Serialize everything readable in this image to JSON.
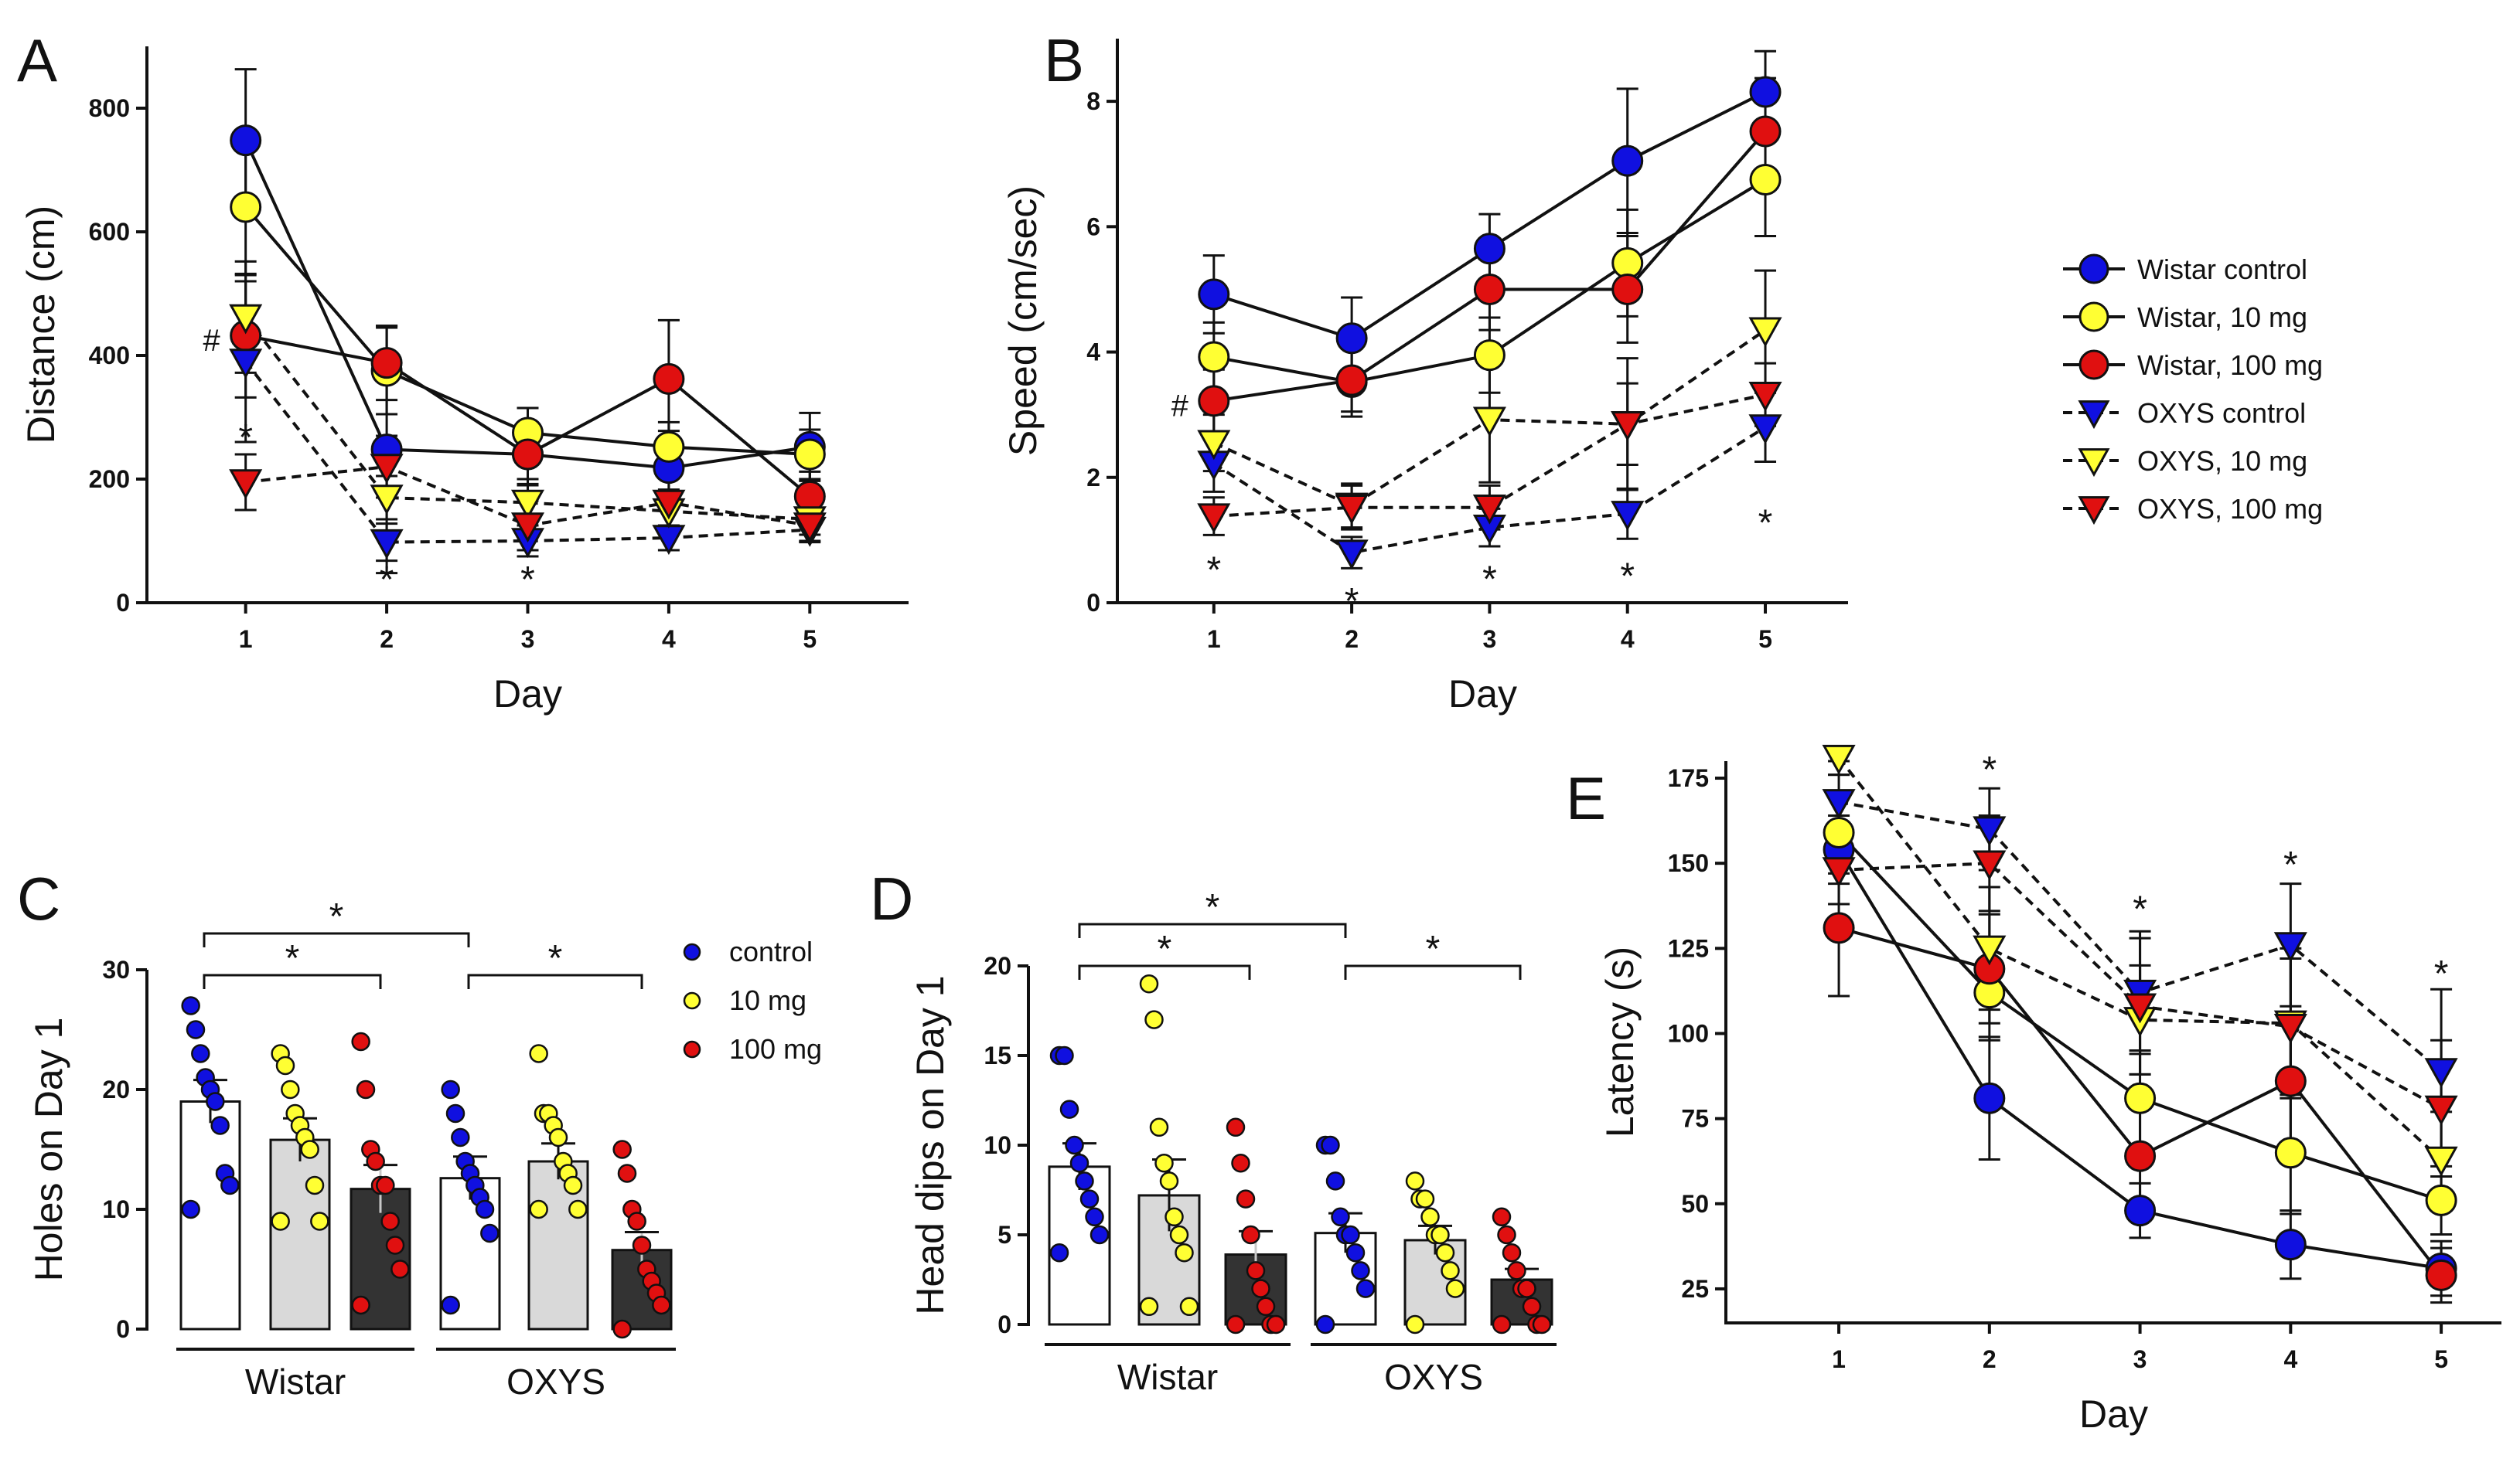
{
  "chart_data": [
    {
      "panel": "A",
      "type": "line",
      "xlabel": "Day",
      "ylabel": "Distance (cm)",
      "x": [
        1,
        2,
        3,
        4,
        5
      ],
      "ylim": [
        0,
        900
      ],
      "yticks": [
        0,
        200,
        400,
        600,
        800
      ],
      "series": [
        {
          "name": "Wistar control",
          "values": [
            748,
            248,
            240,
            218,
            252
          ],
          "errors": [
            115,
            200,
            50,
            60,
            55
          ]
        },
        {
          "name": "Wistar, 10 mg",
          "values": [
            640,
            375,
            275,
            252,
            240
          ],
          "errors": [
            110,
            70,
            40,
            40,
            40
          ]
        },
        {
          "name": "Wistar, 100 mg",
          "values": [
            432,
            388,
            240,
            362,
            172
          ],
          "errors": [
            100,
            60,
            40,
            95,
            40
          ]
        },
        {
          "name": "OXYS control",
          "values": [
            390,
            98,
            100,
            105,
            118
          ],
          "errors": [
            130,
            30,
            25,
            20,
            20
          ]
        },
        {
          "name": "OXYS, 10 mg",
          "values": [
            462,
            170,
            162,
            148,
            135
          ],
          "errors": [
            90,
            35,
            30,
            35,
            25
          ]
        },
        {
          "name": "OXYS, 100 mg",
          "values": [
            195,
            220,
            125,
            162,
            125
          ],
          "errors": [
            45,
            50,
            40,
            40,
            25
          ]
        }
      ],
      "annotations": [
        {
          "text": "#",
          "x": 1,
          "y": 430
        },
        {
          "text": "*",
          "x": 1,
          "y": 270
        },
        {
          "text": "*",
          "x": 2,
          "y": 40
        },
        {
          "text": "*",
          "x": 3,
          "y": 40
        }
      ]
    },
    {
      "panel": "B",
      "type": "line",
      "xlabel": "Day",
      "ylabel": "Speed (cm/sec)",
      "x": [
        1,
        2,
        3,
        4,
        5
      ],
      "ylim": [
        0,
        9
      ],
      "yticks": [
        0,
        2,
        4,
        6,
        8
      ],
      "series": [
        {
          "name": "Wistar control",
          "values": [
            4.92,
            4.22,
            5.65,
            7.05,
            8.15
          ],
          "errors": [
            0.62,
            0.65,
            0.55,
            1.15,
            0.65
          ]
        },
        {
          "name": "Wistar, 10 mg",
          "values": [
            3.92,
            3.52,
            3.95,
            5.42,
            6.75
          ],
          "errors": [
            0.55,
            0.55,
            0.6,
            0.85,
            0.9
          ]
        },
        {
          "name": "Wistar, 100 mg",
          "values": [
            3.22,
            3.55,
            5.0,
            5.0,
            7.52
          ],
          "errors": [
            0.5,
            0.5,
            0.65,
            0.85,
            0.85
          ]
        },
        {
          "name": "OXYS control",
          "values": [
            2.22,
            0.8,
            1.2,
            1.42,
            2.8
          ],
          "errors": [
            0.45,
            0.25,
            0.3,
            0.4,
            0.55
          ]
        },
        {
          "name": "OXYS, 10 mg",
          "values": [
            2.55,
            1.55,
            2.92,
            2.85,
            4.35
          ],
          "errors": [
            0.45,
            0.35,
            1.0,
            1.05,
            0.95
          ]
        },
        {
          "name": "OXYS, 100 mg",
          "values": [
            1.38,
            1.52,
            1.52,
            2.85,
            3.32
          ],
          "errors": [
            0.3,
            0.35,
            0.35,
            0.65,
            0.5
          ]
        }
      ],
      "annotations": [
        {
          "text": "#",
          "x": 1,
          "y": 3.2
        },
        {
          "text": "*",
          "x": 1,
          "y": 0.55
        },
        {
          "text": "*",
          "x": 2,
          "y": 0.05
        },
        {
          "text": "*",
          "x": 3,
          "y": 0.4
        },
        {
          "text": "*",
          "x": 4,
          "y": 0.45
        },
        {
          "text": "*",
          "x": 5,
          "y": 1.3
        }
      ]
    },
    {
      "panel": "C",
      "type": "bar",
      "ylabel": "Holes on Day 1",
      "ylim": [
        0,
        30
      ],
      "yticks": [
        0,
        10,
        20,
        30
      ],
      "groups": [
        "Wistar",
        "OXYS"
      ],
      "series_names": [
        "control",
        "10 mg",
        "100 mg"
      ],
      "bars": [
        {
          "group": "Wistar",
          "series": "control",
          "mean": 19,
          "sem": 1.8,
          "points": [
            27,
            25,
            23,
            21,
            20,
            19,
            17,
            13,
            12,
            10
          ]
        },
        {
          "group": "Wistar",
          "series": "10 mg",
          "mean": 15.8,
          "sem": 1.8,
          "points": [
            23,
            22,
            20,
            18,
            17,
            16,
            15,
            12,
            9,
            9
          ]
        },
        {
          "group": "Wistar",
          "series": "100 mg",
          "mean": 11.7,
          "sem": 2.0,
          "points": [
            24,
            20,
            15,
            14,
            12,
            12,
            9,
            7,
            5,
            2
          ]
        },
        {
          "group": "OXYS",
          "series": "control",
          "mean": 12.6,
          "sem": 1.8,
          "points": [
            20,
            18,
            16,
            14,
            13,
            12,
            11,
            10,
            8,
            2
          ]
        },
        {
          "group": "OXYS",
          "series": "10 mg",
          "mean": 14.0,
          "sem": 1.5,
          "points": [
            23,
            18,
            18,
            17,
            16,
            14,
            13,
            12,
            10,
            10
          ]
        },
        {
          "group": "OXYS",
          "series": "100 mg",
          "mean": 6.6,
          "sem": 1.5,
          "points": [
            15,
            13,
            10,
            9,
            7,
            5,
            4,
            3,
            2,
            0
          ]
        }
      ],
      "significance": [
        {
          "from": "Wistar control",
          "to": "OXYS control",
          "label": "*"
        },
        {
          "from": "Wistar control",
          "to": "Wistar 100 mg",
          "label": "*"
        },
        {
          "from": "OXYS control",
          "to": "OXYS 100 mg",
          "label": "*"
        }
      ]
    },
    {
      "panel": "D",
      "type": "bar",
      "ylabel": "Head dips on Day 1",
      "ylim": [
        0,
        20
      ],
      "yticks": [
        0,
        5,
        10,
        15,
        20
      ],
      "groups": [
        "Wistar",
        "OXYS"
      ],
      "series_names": [
        "control",
        "10 mg",
        "100 mg"
      ],
      "bars": [
        {
          "group": "Wistar",
          "series": "control",
          "mean": 8.8,
          "sem": 1.3,
          "points": [
            15,
            15,
            12,
            10,
            9,
            8,
            7,
            6,
            5,
            4
          ]
        },
        {
          "group": "Wistar",
          "series": "10 mg",
          "mean": 7.2,
          "sem": 2.0,
          "points": [
            19,
            17,
            11,
            9,
            8,
            6,
            5,
            4,
            1,
            1
          ]
        },
        {
          "group": "Wistar",
          "series": "100 mg",
          "mean": 3.9,
          "sem": 1.3,
          "points": [
            11,
            9,
            7,
            5,
            3,
            2,
            1,
            0,
            0,
            0
          ]
        },
        {
          "group": "OXYS",
          "series": "control",
          "mean": 5.1,
          "sem": 1.1,
          "points": [
            10,
            10,
            8,
            6,
            5,
            5,
            4,
            3,
            2,
            0
          ]
        },
        {
          "group": "OXYS",
          "series": "10 mg",
          "mean": 4.7,
          "sem": 0.8,
          "points": [
            8,
            7,
            7,
            6,
            5,
            5,
            4,
            3,
            2,
            0
          ]
        },
        {
          "group": "OXYS",
          "series": "100 mg",
          "mean": 2.5,
          "sem": 0.6,
          "points": [
            6,
            5,
            4,
            3,
            2,
            2,
            1,
            0,
            0,
            0
          ]
        }
      ],
      "significance": [
        {
          "from": "Wistar control",
          "to": "OXYS control",
          "label": "*"
        },
        {
          "from": "Wistar control",
          "to": "Wistar 100 mg",
          "label": "*"
        },
        {
          "from": "OXYS control",
          "to": "OXYS 100 mg",
          "label": "*"
        }
      ]
    },
    {
      "panel": "E",
      "type": "line",
      "xlabel": "Day",
      "ylabel": "Latency (s)",
      "x": [
        1,
        2,
        3,
        4,
        5
      ],
      "ylim": [
        15,
        180
      ],
      "yticks": [
        25,
        50,
        75,
        100,
        125,
        150,
        175
      ],
      "series": [
        {
          "name": "Wistar control",
          "values": [
            154,
            81,
            48,
            38,
            31
          ],
          "errors": [
            10,
            18,
            8,
            10,
            8
          ]
        },
        {
          "name": "Wistar, 10 mg",
          "values": [
            159,
            112,
            81,
            65,
            51
          ],
          "errors": [
            12,
            14,
            14,
            18,
            10
          ]
        },
        {
          "name": "Wistar, 100 mg",
          "values": [
            131,
            119,
            64,
            86,
            29
          ],
          "errors": [
            20,
            16,
            14,
            20,
            8
          ]
        },
        {
          "name": "OXYS control",
          "values": [
            168,
            160,
            112,
            126,
            89
          ],
          "errors": [
            8,
            12,
            18,
            18,
            24
          ]
        },
        {
          "name": "OXYS, 10 mg",
          "values": [
            181,
            125,
            104,
            103,
            63
          ],
          "errors": [
            5,
            18,
            16,
            22,
            14
          ]
        },
        {
          "name": "OXYS, 100 mg",
          "values": [
            148,
            150,
            108,
            102,
            78
          ],
          "errors": [
            10,
            14,
            20,
            20,
            20
          ]
        }
      ],
      "annotations": [
        {
          "text": "*",
          "x": 2,
          "y": 178
        },
        {
          "text": "*",
          "x": 3,
          "y": 137
        },
        {
          "text": "*",
          "x": 4,
          "y": 150
        },
        {
          "text": "*",
          "x": 5,
          "y": 118
        }
      ]
    }
  ],
  "labels": {
    "panel_a": "A",
    "panel_b": "B",
    "panel_c": "C",
    "panel_d": "D",
    "panel_e": "E",
    "group_wistar": "Wistar",
    "group_oxys": "OXYS",
    "star": "*",
    "hash": "#"
  },
  "legend_lines": {
    "title": "",
    "entries": [
      {
        "name": "Wistar control",
        "marker": "circle",
        "color": "#1010e0",
        "dashed": false
      },
      {
        "name": "Wistar, 10 mg",
        "marker": "circle",
        "color": "#ffff33",
        "dashed": false
      },
      {
        "name": "Wistar, 100 mg",
        "marker": "circle",
        "color": "#e01010",
        "dashed": false
      },
      {
        "name": "OXYS control",
        "marker": "triangle",
        "color": "#1010e0",
        "dashed": true
      },
      {
        "name": "OXYS, 10 mg",
        "marker": "triangle",
        "color": "#ffff33",
        "dashed": true
      },
      {
        "name": "OXYS, 100 mg",
        "marker": "triangle",
        "color": "#e01010",
        "dashed": true
      }
    ]
  },
  "legend_bars": {
    "entries": [
      {
        "name": "control",
        "color": "#1010e0"
      },
      {
        "name": "10 mg",
        "color": "#ffff33"
      },
      {
        "name": "100 mg",
        "color": "#e01010"
      }
    ]
  },
  "colors": {
    "blue": "#1010e0",
    "yellow": "#ffff33",
    "red": "#e01010",
    "bar_white": "#ffffff",
    "bar_grey": "#d9d9d9",
    "bar_dark": "#333333"
  }
}
